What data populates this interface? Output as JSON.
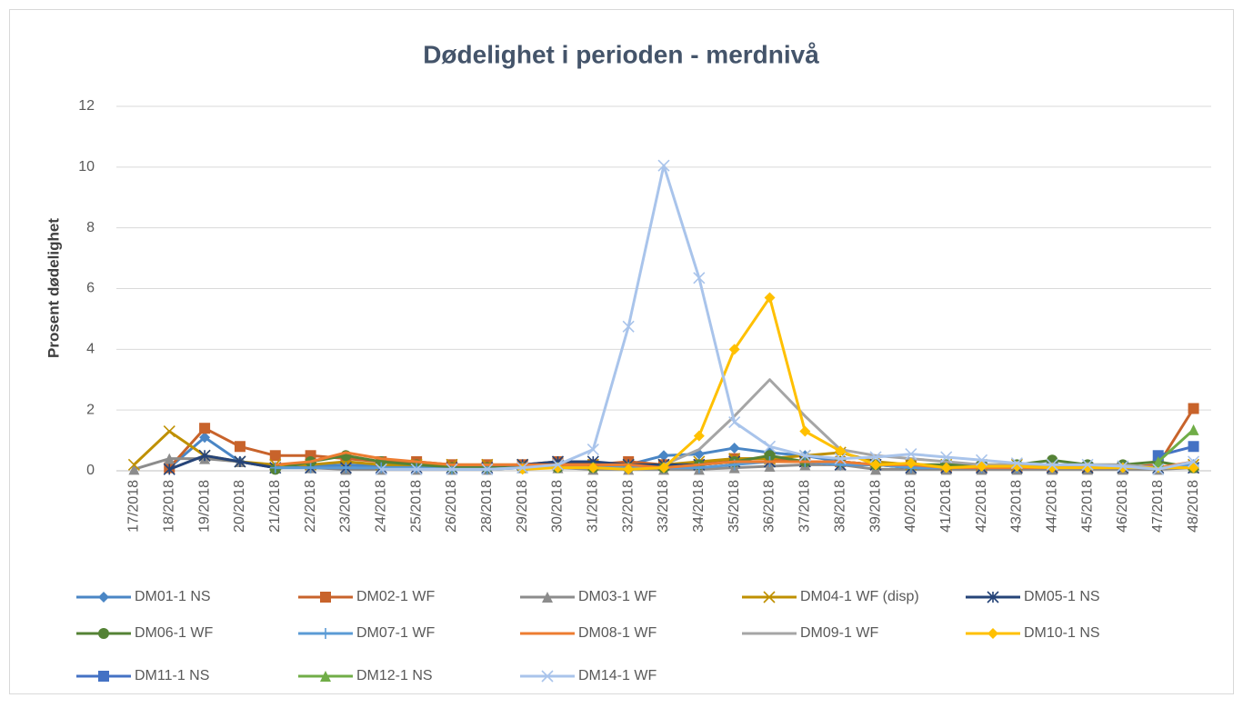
{
  "chart_data": {
    "type": "line",
    "title": "Dødelighet i perioden - merdnivå",
    "y_label": "Prosent dødelighet",
    "categories": [
      "17/2018",
      "18/2018",
      "19/2018",
      "20/2018",
      "21/2018",
      "22/2018",
      "23/2018",
      "24/2018",
      "25/2018",
      "26/2018",
      "28/2018",
      "29/2018",
      "30/2018",
      "31/2018",
      "32/2018",
      "33/2018",
      "34/2018",
      "35/2018",
      "36/2018",
      "37/2018",
      "38/2018",
      "39/2018",
      "40/2018",
      "41/2018",
      "42/2018",
      "43/2018",
      "44/2018",
      "45/2018",
      "46/2018",
      "47/2018",
      "48/2018"
    ],
    "ylim": [
      0,
      12
    ],
    "yticks": [
      0,
      2,
      4,
      6,
      8,
      10,
      12
    ],
    "grid": true,
    "legend": "bottom",
    "series": [
      {
        "name": "DM01-1 NS",
        "color": "#4a86c5",
        "marker": "diamond",
        "values": [
          null,
          0.1,
          1.1,
          0.3,
          0.1,
          0.15,
          0.2,
          0.15,
          0.15,
          0.1,
          0.1,
          0.15,
          0.3,
          0.2,
          0.2,
          0.5,
          0.55,
          0.75,
          0.6,
          0.5,
          0.3,
          0.2,
          0.2,
          0.15,
          0.1,
          0.1,
          0.1,
          0.1,
          0.1,
          0.1,
          0.2
        ]
      },
      {
        "name": "DM02-1 WF",
        "color": "#c8632b",
        "marker": "square",
        "values": [
          null,
          0.1,
          1.4,
          0.8,
          0.5,
          0.5,
          0.4,
          0.3,
          0.3,
          0.2,
          0.2,
          0.2,
          0.3,
          0.2,
          0.3,
          0.2,
          0.2,
          0.4,
          0.4,
          0.3,
          0.3,
          0.2,
          0.2,
          0.1,
          0.1,
          0.1,
          0.1,
          0.1,
          0.1,
          0.2,
          2.05
        ]
      },
      {
        "name": "DM03-1 WF",
        "color": "#8c8c8c",
        "marker": "triangle",
        "values": [
          0.05,
          0.4,
          0.4,
          0.3,
          0.1,
          0.1,
          0.05,
          0.05,
          0.05,
          0.05,
          0.05,
          0.1,
          0.1,
          0.05,
          0.05,
          0.05,
          0.05,
          0.1,
          0.15,
          0.2,
          0.2,
          0.05,
          0.05,
          0.05,
          0.05,
          0.05,
          0.05,
          0.05,
          0.05,
          0.05,
          0.1
        ]
      },
      {
        "name": "DM04-1 WF (disp)",
        "color": "#bf9000",
        "marker": "x",
        "values": [
          0.2,
          1.3,
          0.5,
          0.3,
          0.2,
          0.2,
          0.3,
          0.2,
          0.2,
          0.2,
          0.2,
          0.2,
          0.2,
          0.2,
          0.2,
          0.2,
          0.3,
          0.4,
          0.4,
          0.5,
          0.6,
          0.3,
          0.2,
          0.2,
          0.2,
          0.2,
          0.2,
          0.1,
          0.1,
          0.1,
          0.2
        ]
      },
      {
        "name": "DM05-1 NS",
        "color": "#264478",
        "marker": "asterisk",
        "values": [
          null,
          0.05,
          0.5,
          0.3,
          0.1,
          0.1,
          0.1,
          0.1,
          0.1,
          0.1,
          0.1,
          0.2,
          0.3,
          0.3,
          0.2,
          0.2,
          0.2,
          0.3,
          0.3,
          0.3,
          0.2,
          0.2,
          0.1,
          0.1,
          0.1,
          0.1,
          0.1,
          0.1,
          0.1,
          0.1,
          0.1
        ]
      },
      {
        "name": "DM06-1 WF",
        "color": "#548235",
        "marker": "circle",
        "values": [
          null,
          null,
          null,
          null,
          0.05,
          0.3,
          0.5,
          0.3,
          0.2,
          0.1,
          0.1,
          0.1,
          0.1,
          0.1,
          0.1,
          0.1,
          0.2,
          0.3,
          0.5,
          0.3,
          0.3,
          0.2,
          0.2,
          0.2,
          0.2,
          0.2,
          0.35,
          0.2,
          0.2,
          0.3,
          0.1
        ]
      },
      {
        "name": "DM07-1 WF",
        "color": "#5b9bd5",
        "marker": "plus",
        "values": [
          null,
          null,
          null,
          null,
          0.1,
          0.1,
          0.1,
          0.1,
          0.1,
          0.05,
          0.05,
          0.1,
          0.1,
          0.1,
          0.1,
          0.1,
          0.1,
          0.2,
          0.3,
          0.3,
          0.2,
          0.2,
          0.1,
          0.1,
          0.1,
          0.1,
          0.1,
          0.1,
          0.1,
          0.1,
          0.2
        ]
      },
      {
        "name": "DM08-1 WF",
        "color": "#ed7d31",
        "marker": "none",
        "values": [
          null,
          null,
          null,
          null,
          0.2,
          0.3,
          0.6,
          0.4,
          0.3,
          0.2,
          0.2,
          0.2,
          0.2,
          0.2,
          0.2,
          0.1,
          0.2,
          0.3,
          0.3,
          0.3,
          0.3,
          0.2,
          0.2,
          0.1,
          0.1,
          0.1,
          0.1,
          0.1,
          0.1,
          0.1,
          0.3
        ]
      },
      {
        "name": "DM09-1 WF",
        "color": "#a5a5a5",
        "marker": "none",
        "values": [
          null,
          null,
          null,
          null,
          null,
          null,
          null,
          null,
          null,
          null,
          null,
          null,
          null,
          null,
          null,
          0.2,
          0.7,
          1.8,
          3.0,
          1.8,
          0.7,
          0.5,
          0.4,
          0.3,
          0.2,
          0.2,
          0.2,
          0.2,
          0.2,
          0.1,
          0.1
        ]
      },
      {
        "name": "DM10-1 NS",
        "color": "#ffc000",
        "marker": "diamond",
        "values": [
          null,
          null,
          null,
          null,
          null,
          null,
          null,
          null,
          null,
          null,
          null,
          0.05,
          0.1,
          0.1,
          0.05,
          0.1,
          1.15,
          4.0,
          5.7,
          1.3,
          0.65,
          0.2,
          0.25,
          0.1,
          0.15,
          0.15,
          0.1,
          0.1,
          0.1,
          0.1,
          0.1
        ]
      },
      {
        "name": "DM11-1 NS",
        "color": "#4472c4",
        "marker": "square",
        "values": [
          null,
          null,
          null,
          null,
          null,
          null,
          null,
          null,
          null,
          null,
          null,
          null,
          null,
          null,
          null,
          null,
          null,
          null,
          null,
          null,
          null,
          null,
          null,
          null,
          null,
          null,
          null,
          null,
          null,
          0.5,
          0.8
        ]
      },
      {
        "name": "DM12-1 NS",
        "color": "#70ad47",
        "marker": "triangle",
        "values": [
          null,
          null,
          null,
          null,
          null,
          null,
          null,
          null,
          null,
          null,
          null,
          null,
          null,
          null,
          null,
          null,
          null,
          null,
          null,
          null,
          null,
          null,
          null,
          null,
          null,
          null,
          null,
          null,
          null,
          0.3,
          1.35
        ]
      },
      {
        "name": "DM14-1 WF",
        "color": "#a9c4eb",
        "marker": "x",
        "values": [
          null,
          null,
          null,
          null,
          null,
          null,
          null,
          0.05,
          0.05,
          0.05,
          0.05,
          0.1,
          0.2,
          0.7,
          4.75,
          10.05,
          6.35,
          1.6,
          0.8,
          0.5,
          0.4,
          0.45,
          0.55,
          0.45,
          0.35,
          0.25,
          0.2,
          0.2,
          0.15,
          0.05,
          0.3
        ]
      }
    ]
  }
}
